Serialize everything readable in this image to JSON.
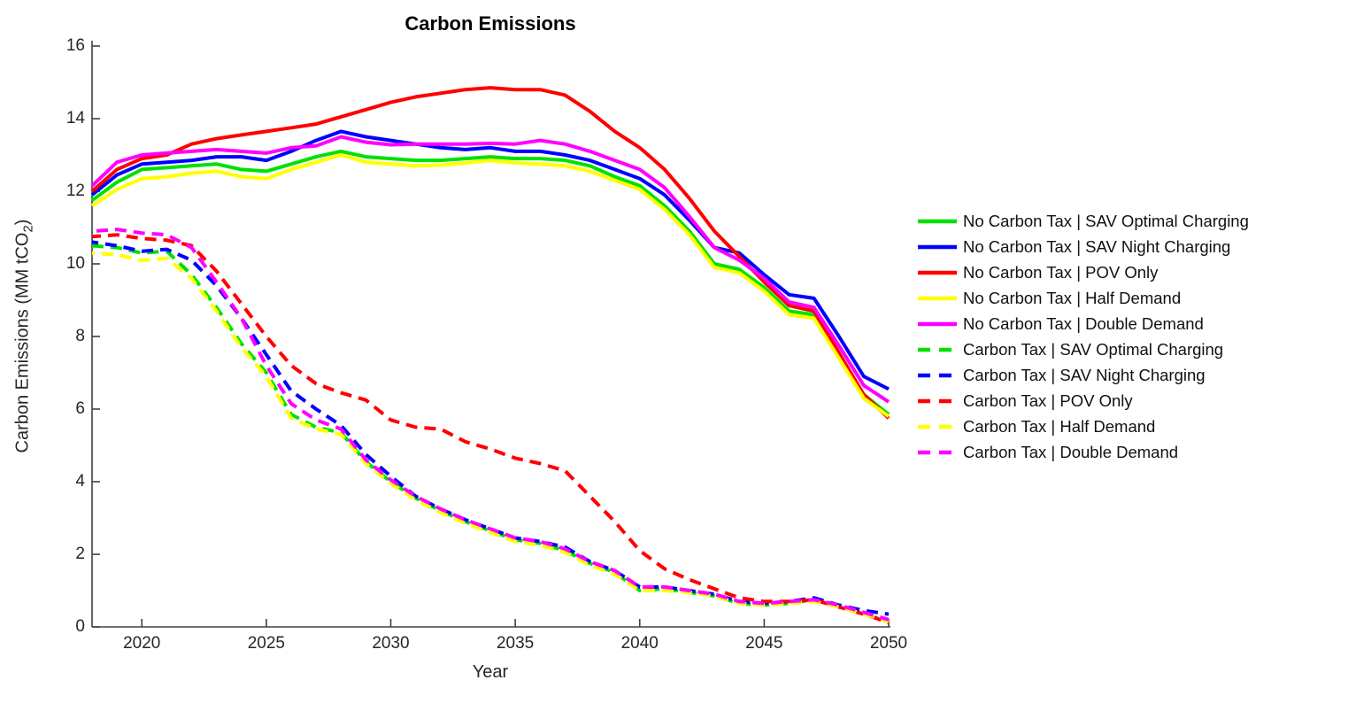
{
  "chart": {
    "title": "Carbon Emissions",
    "x_label": "Year",
    "y_label_main": "Carbon Emissions (MM tCO",
    "y_label_sub": "2",
    "y_label_close": ")",
    "x_ticks": [
      2020,
      2025,
      2030,
      2035,
      2040,
      2045,
      2050
    ],
    "y_ticks": [
      0,
      2,
      4,
      6,
      8,
      10,
      12,
      14,
      16
    ],
    "axis_color": "#404040"
  },
  "chart_data": {
    "type": "line",
    "title": "Carbon Emissions",
    "xlabel": "Year",
    "ylabel": "Carbon Emissions (MM tCO2)",
    "xlim": [
      2018,
      2050
    ],
    "ylim": [
      0,
      16
    ],
    "grid": false,
    "legend_position": "right-outside",
    "x": [
      2018,
      2019,
      2020,
      2021,
      2022,
      2023,
      2024,
      2025,
      2026,
      2027,
      2028,
      2029,
      2030,
      2031,
      2032,
      2033,
      2034,
      2035,
      2036,
      2037,
      2038,
      2039,
      2040,
      2041,
      2042,
      2043,
      2044,
      2045,
      2046,
      2047,
      2048,
      2049,
      2050
    ],
    "series": [
      {
        "name": "No Carbon Tax | SAV Optimal Charging",
        "color": "#00e100",
        "style": "solid",
        "values": [
          11.75,
          12.25,
          12.6,
          12.65,
          12.7,
          12.75,
          12.6,
          12.55,
          12.75,
          12.95,
          13.1,
          12.95,
          12.9,
          12.85,
          12.85,
          12.9,
          12.95,
          12.9,
          12.9,
          12.85,
          12.7,
          12.4,
          12.15,
          11.6,
          10.9,
          10.0,
          9.85,
          9.35,
          8.7,
          8.6,
          7.5,
          6.4,
          5.85
        ]
      },
      {
        "name": "No Carbon Tax | SAV Night Charging",
        "color": "#0000ff",
        "style": "solid",
        "values": [
          11.9,
          12.45,
          12.75,
          12.8,
          12.85,
          12.95,
          12.95,
          12.85,
          13.1,
          13.4,
          13.65,
          13.5,
          13.4,
          13.3,
          13.2,
          13.15,
          13.2,
          13.1,
          13.1,
          13.0,
          12.85,
          12.6,
          12.35,
          11.9,
          11.2,
          10.45,
          10.3,
          9.7,
          9.15,
          9.05,
          8.0,
          6.9,
          6.55
        ]
      },
      {
        "name": "No Carbon Tax | POV Only",
        "color": "#ff0000",
        "style": "solid",
        "values": [
          12.0,
          12.6,
          12.9,
          13.0,
          13.3,
          13.45,
          13.55,
          13.65,
          13.75,
          13.85,
          14.05,
          14.25,
          14.45,
          14.6,
          14.7,
          14.8,
          14.85,
          14.8,
          14.8,
          14.65,
          14.2,
          13.65,
          13.2,
          12.6,
          11.8,
          10.9,
          10.2,
          9.5,
          8.85,
          8.7,
          7.55,
          6.4,
          5.75
        ]
      },
      {
        "name": "No Carbon Tax | Half Demand",
        "color": "#ffff00",
        "style": "solid",
        "values": [
          11.6,
          12.05,
          12.35,
          12.4,
          12.5,
          12.55,
          12.4,
          12.35,
          12.6,
          12.8,
          13.0,
          12.8,
          12.75,
          12.7,
          12.72,
          12.78,
          12.85,
          12.78,
          12.75,
          12.7,
          12.55,
          12.3,
          12.05,
          11.5,
          10.8,
          9.9,
          9.75,
          9.25,
          8.6,
          8.5,
          7.4,
          6.3,
          5.8
        ]
      },
      {
        "name": "No Carbon Tax | Double Demand",
        "color": "#ff00ff",
        "style": "solid",
        "values": [
          12.15,
          12.8,
          13.0,
          13.05,
          13.1,
          13.15,
          13.1,
          13.05,
          13.2,
          13.25,
          13.5,
          13.35,
          13.28,
          13.3,
          13.3,
          13.3,
          13.32,
          13.3,
          13.4,
          13.3,
          13.1,
          12.85,
          12.6,
          12.1,
          11.3,
          10.45,
          10.1,
          9.6,
          8.95,
          8.8,
          7.75,
          6.65,
          6.2
        ]
      },
      {
        "name": "Carbon Tax | SAV Optimal Charging",
        "color": "#00e100",
        "style": "dashed",
        "values": [
          10.5,
          10.45,
          10.3,
          10.35,
          9.7,
          8.8,
          7.8,
          7.0,
          5.85,
          5.5,
          5.35,
          4.55,
          4.0,
          3.55,
          3.2,
          2.9,
          2.65,
          2.4,
          2.3,
          2.1,
          1.75,
          1.5,
          1.0,
          1.05,
          0.95,
          0.85,
          0.65,
          0.6,
          0.65,
          0.75,
          0.55,
          0.35,
          0.15
        ]
      },
      {
        "name": "Carbon Tax | SAV Night Charging",
        "color": "#0000ff",
        "style": "dashed",
        "values": [
          10.6,
          10.5,
          10.35,
          10.4,
          10.1,
          9.4,
          8.5,
          7.5,
          6.5,
          6.0,
          5.55,
          4.75,
          4.15,
          3.6,
          3.25,
          2.95,
          2.7,
          2.45,
          2.35,
          2.2,
          1.8,
          1.55,
          1.1,
          1.1,
          1.0,
          0.9,
          0.7,
          0.65,
          0.7,
          0.8,
          0.6,
          0.45,
          0.35
        ]
      },
      {
        "name": "Carbon Tax | POV Only",
        "color": "#ff0000",
        "style": "dashed",
        "values": [
          10.75,
          10.8,
          10.7,
          10.65,
          10.5,
          9.8,
          8.9,
          8.0,
          7.2,
          6.7,
          6.45,
          6.25,
          5.7,
          5.5,
          5.45,
          5.1,
          4.9,
          4.65,
          4.5,
          4.3,
          3.6,
          2.9,
          2.1,
          1.6,
          1.3,
          1.05,
          0.8,
          0.7,
          0.7,
          0.75,
          0.55,
          0.35,
          0.12
        ]
      },
      {
        "name": "Carbon Tax | Half Demand",
        "color": "#ffff00",
        "style": "dashed",
        "values": [
          10.3,
          10.25,
          10.1,
          10.15,
          9.6,
          8.7,
          7.7,
          6.9,
          5.75,
          5.45,
          5.3,
          4.5,
          3.95,
          3.5,
          3.15,
          2.85,
          2.6,
          2.35,
          2.25,
          2.05,
          1.7,
          1.45,
          1.0,
          1.0,
          0.95,
          0.85,
          0.65,
          0.6,
          0.65,
          0.7,
          0.55,
          0.35,
          0.15
        ]
      },
      {
        "name": "Carbon Tax | Double Demand",
        "color": "#ff00ff",
        "style": "dashed",
        "values": [
          10.9,
          10.95,
          10.85,
          10.8,
          10.45,
          9.5,
          8.5,
          7.2,
          6.15,
          5.7,
          5.45,
          4.6,
          4.05,
          3.6,
          3.25,
          2.95,
          2.7,
          2.45,
          2.35,
          2.15,
          1.8,
          1.55,
          1.1,
          1.1,
          1.0,
          0.9,
          0.7,
          0.65,
          0.7,
          0.75,
          0.6,
          0.4,
          0.2
        ]
      }
    ]
  }
}
